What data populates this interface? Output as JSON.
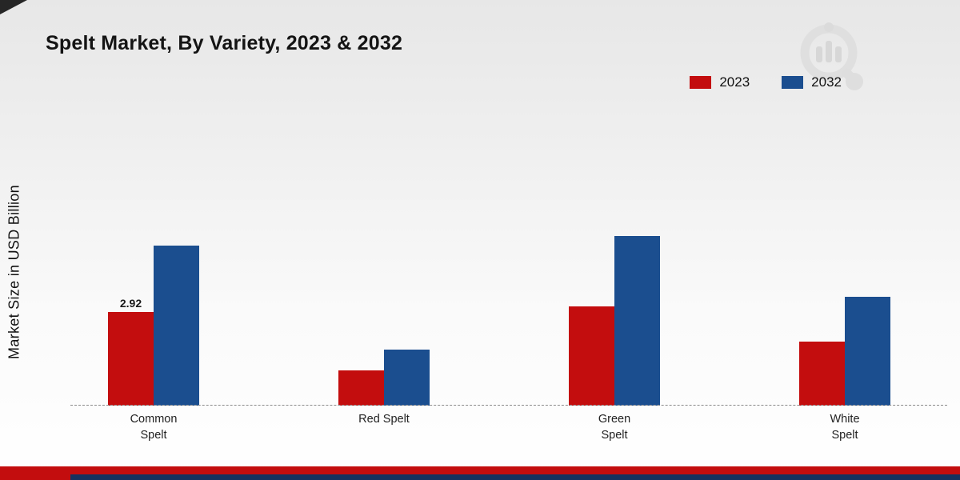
{
  "title": "Spelt Market, By Variety, 2023 & 2032",
  "ylabel": "Market Size in USD Billion",
  "legend": [
    {
      "label": "2023",
      "color": "#c30d0e"
    },
    {
      "label": "2032",
      "color": "#1b4e8f"
    }
  ],
  "chart_data": {
    "type": "bar",
    "title": "Spelt Market, By Variety, 2023 & 2032",
    "ylabel": "Market Size in USD Billion",
    "xlabel": "",
    "categories": [
      "Common Spelt",
      "Red Spelt",
      "Green Spelt",
      "White Spelt"
    ],
    "category_lines": [
      [
        "Common",
        "Spelt"
      ],
      [
        "Red Spelt"
      ],
      [
        "Green",
        "Spelt"
      ],
      [
        "White",
        "Spelt"
      ]
    ],
    "series": [
      {
        "name": "2023",
        "color": "#c30d0e",
        "values": [
          2.92,
          1.1,
          3.1,
          2.0
        ]
      },
      {
        "name": "2032",
        "color": "#1b4e8f",
        "values": [
          5.0,
          1.75,
          5.3,
          3.4
        ]
      }
    ],
    "ylim": [
      0,
      6
    ],
    "grid": false,
    "legend_position": "top-right",
    "annotations": [
      {
        "series_index": 0,
        "category_index": 0,
        "text": "2.92"
      }
    ],
    "colors": {
      "accent_red": "#c30d0e",
      "accent_blue": "#1b4e8f",
      "footer_navy": "#16315e"
    }
  }
}
